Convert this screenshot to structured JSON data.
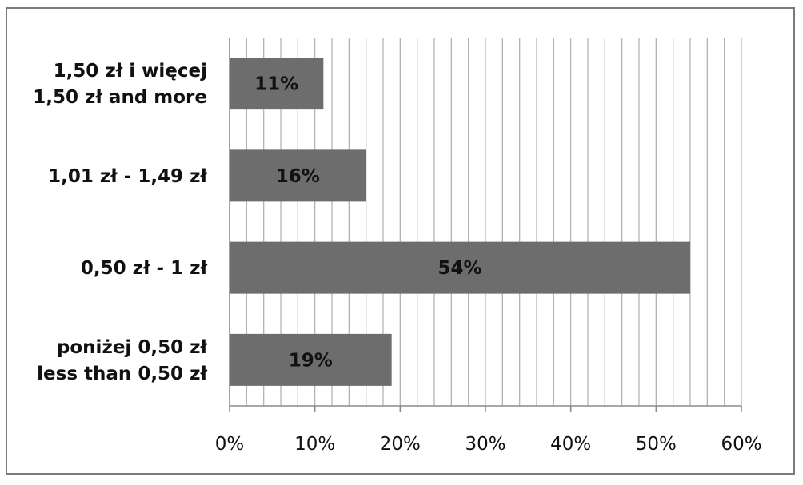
{
  "chart_data": {
    "type": "bar",
    "orientation": "horizontal",
    "categories": [
      [
        "1,50 zł i więcej",
        "1,50 zł and more"
      ],
      [
        "1,01 zł - 1,49 zł"
      ],
      [
        "0,50 zł - 1 zł"
      ],
      [
        "poniżej 0,50 zł",
        "less than 0,50 zł"
      ]
    ],
    "values": [
      11,
      16,
      54,
      19
    ],
    "data_labels": [
      "11%",
      "16%",
      "54%",
      "19%"
    ],
    "x_ticks": [
      "0%",
      "10%",
      "20%",
      "30%",
      "40%",
      "50%",
      "60%"
    ],
    "xlim": [
      0,
      60
    ],
    "minor_gridline_step": 2,
    "grid": true,
    "legend": "none",
    "title": "",
    "xlabel": "",
    "ylabel": "",
    "colors": {
      "bar": "#6d6d6d",
      "gridline": "#b3b3b3",
      "axis": "#8a8a8a",
      "frame": "#7a7a7a"
    }
  }
}
